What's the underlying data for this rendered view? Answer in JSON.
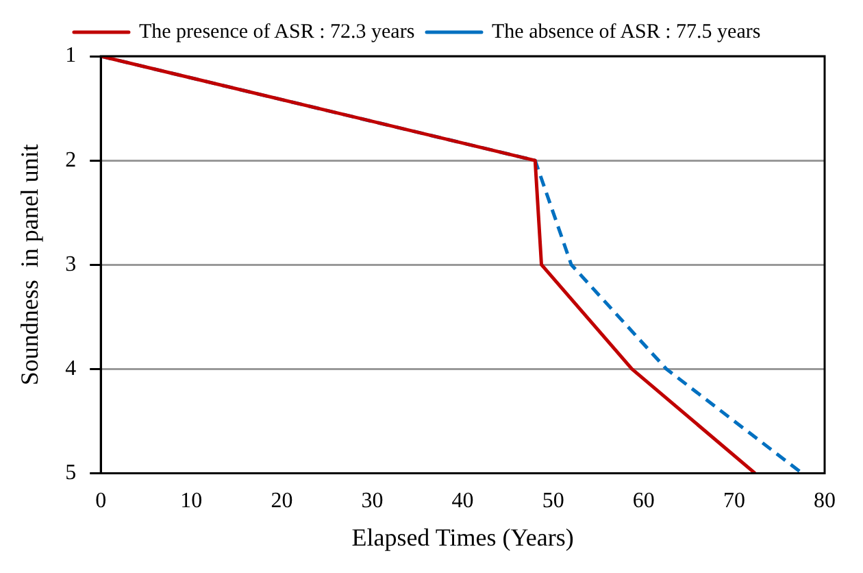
{
  "chart_data": {
    "type": "line",
    "xlabel": "Elapsed Times (Years)",
    "ylabel": "Soundness  in panel unit",
    "xlim": [
      0,
      80
    ],
    "xticks": [
      0,
      10,
      20,
      30,
      40,
      50,
      60,
      70,
      80
    ],
    "ylim": [
      5,
      1
    ],
    "yticks": [
      1,
      2,
      3,
      4,
      5
    ],
    "grid": "y",
    "legend": "top",
    "marker": "none",
    "series": [
      {
        "name": "The presence of ASR : 72.3 years",
        "color": "#c00000",
        "line_style": "solid",
        "x": [
          0,
          48,
          48.7,
          58.7,
          72.3
        ],
        "values": [
          1,
          2,
          3,
          4,
          5
        ]
      },
      {
        "name": "The absence of ASR : 77.5 years",
        "color": "#0070c0",
        "line_style": "dashed",
        "x": [
          0,
          48,
          52,
          62.5,
          77.5
        ],
        "values": [
          1,
          2,
          3,
          4,
          5
        ]
      }
    ]
  }
}
